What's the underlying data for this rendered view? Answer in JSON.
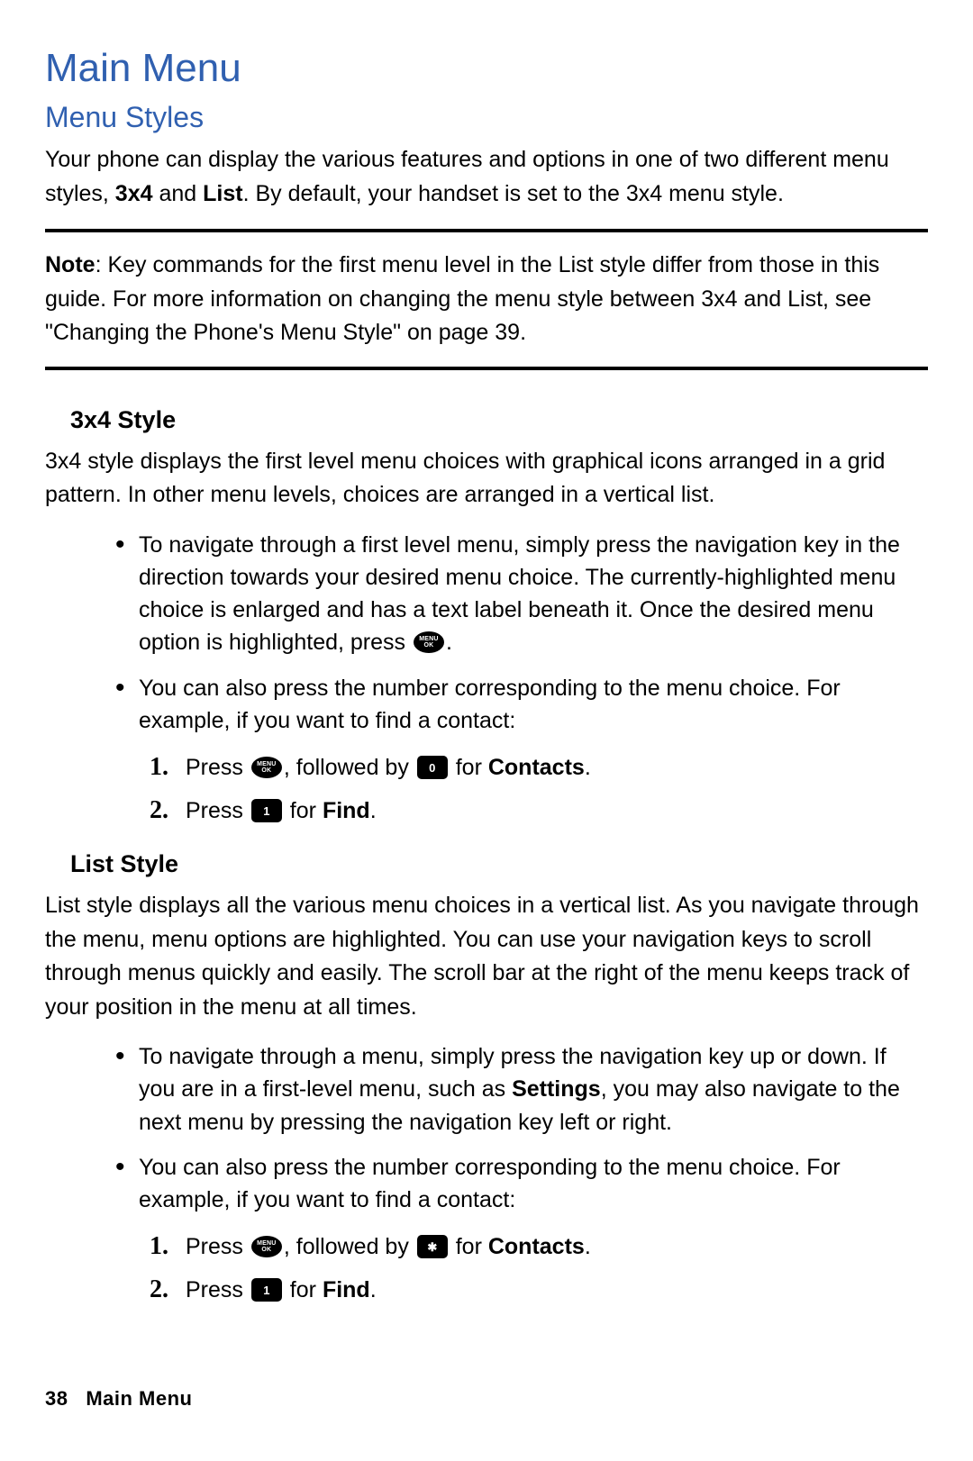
{
  "title": "Main Menu",
  "subtitle": "Menu Styles",
  "intro": {
    "pre": "Your phone can display the various features and options in one of two different menu styles, ",
    "bold1": "3x4",
    "mid": " and ",
    "bold2": "List",
    "post": ". By default, your handset is set to the 3x4 menu style."
  },
  "note": {
    "label": "Note",
    "text": ": Key commands for the first menu level in the List style differ from those in this guide. For more information on changing the menu style between 3x4 and List, see \"Changing the Phone's Menu Style\" on page 39."
  },
  "style3x4": {
    "heading": "3x4 Style",
    "para": "3x4 style displays the first level menu choices with graphical icons arranged in a grid pattern. In other menu levels, choices are arranged in a vertical list.",
    "bullets": [
      {
        "pre": "To navigate through a first level menu, simply press the navigation key in the direction towards your desired menu choice. The currently-highlighted menu choice is enlarged and has a text label beneath it. Once the desired menu option is highlighted, press ",
        "icon": "menu-ok-icon",
        "post": "."
      },
      {
        "text": "You can also press the number corresponding to the menu choice. For example, if you want to find a contact:"
      }
    ],
    "steps": [
      {
        "pre": "Press ",
        "icon1": "menu-ok-icon",
        "mid": ", followed by ",
        "icon2": "key-0-icon",
        "post1": " for ",
        "bold": "Contacts",
        "post2": "."
      },
      {
        "pre": "Press ",
        "icon": "key-1-icon",
        "post1": " for ",
        "bold": "Find",
        "post2": "."
      }
    ]
  },
  "styleList": {
    "heading": "List Style",
    "para": "List style displays all the various menu choices in a vertical list. As you navigate through the menu, menu options are highlighted. You can use your navigation keys to scroll through menus quickly and easily. The scroll bar at the right of the menu keeps track of your position in the menu at all times.",
    "bullets": [
      {
        "pre": "To navigate through a menu, simply press the navigation key up or down. If you are in a first-level menu, such as ",
        "bold": "Settings",
        "post": ", you may also navigate to the next menu by pressing the navigation key left or right."
      },
      {
        "text": "You can also press the number corresponding to the menu choice. For example, if you want to find a contact:"
      }
    ],
    "steps": [
      {
        "pre": "Press ",
        "icon1": "menu-ok-icon",
        "mid": ", followed by ",
        "icon2": "key-star-icon",
        "post1": " for ",
        "bold": "Contacts",
        "post2": "."
      },
      {
        "pre": "Press ",
        "icon": "key-1-icon",
        "post1": " for ",
        "bold": "Find",
        "post2": "."
      }
    ]
  },
  "footer": {
    "page": "38",
    "label": "Main Menu"
  },
  "icons": {
    "menu-ok-icon": "MENU\nOK",
    "key-0-icon": "0",
    "key-1-icon": "1",
    "key-star-icon": "✱"
  },
  "colors": {
    "heading": "#3060b0",
    "text": "#000000",
    "background": "#ffffff"
  },
  "typography": {
    "h1_size": 44,
    "h2_size": 32,
    "h3_size": 27,
    "body_size": 25,
    "footer_size": 22
  }
}
